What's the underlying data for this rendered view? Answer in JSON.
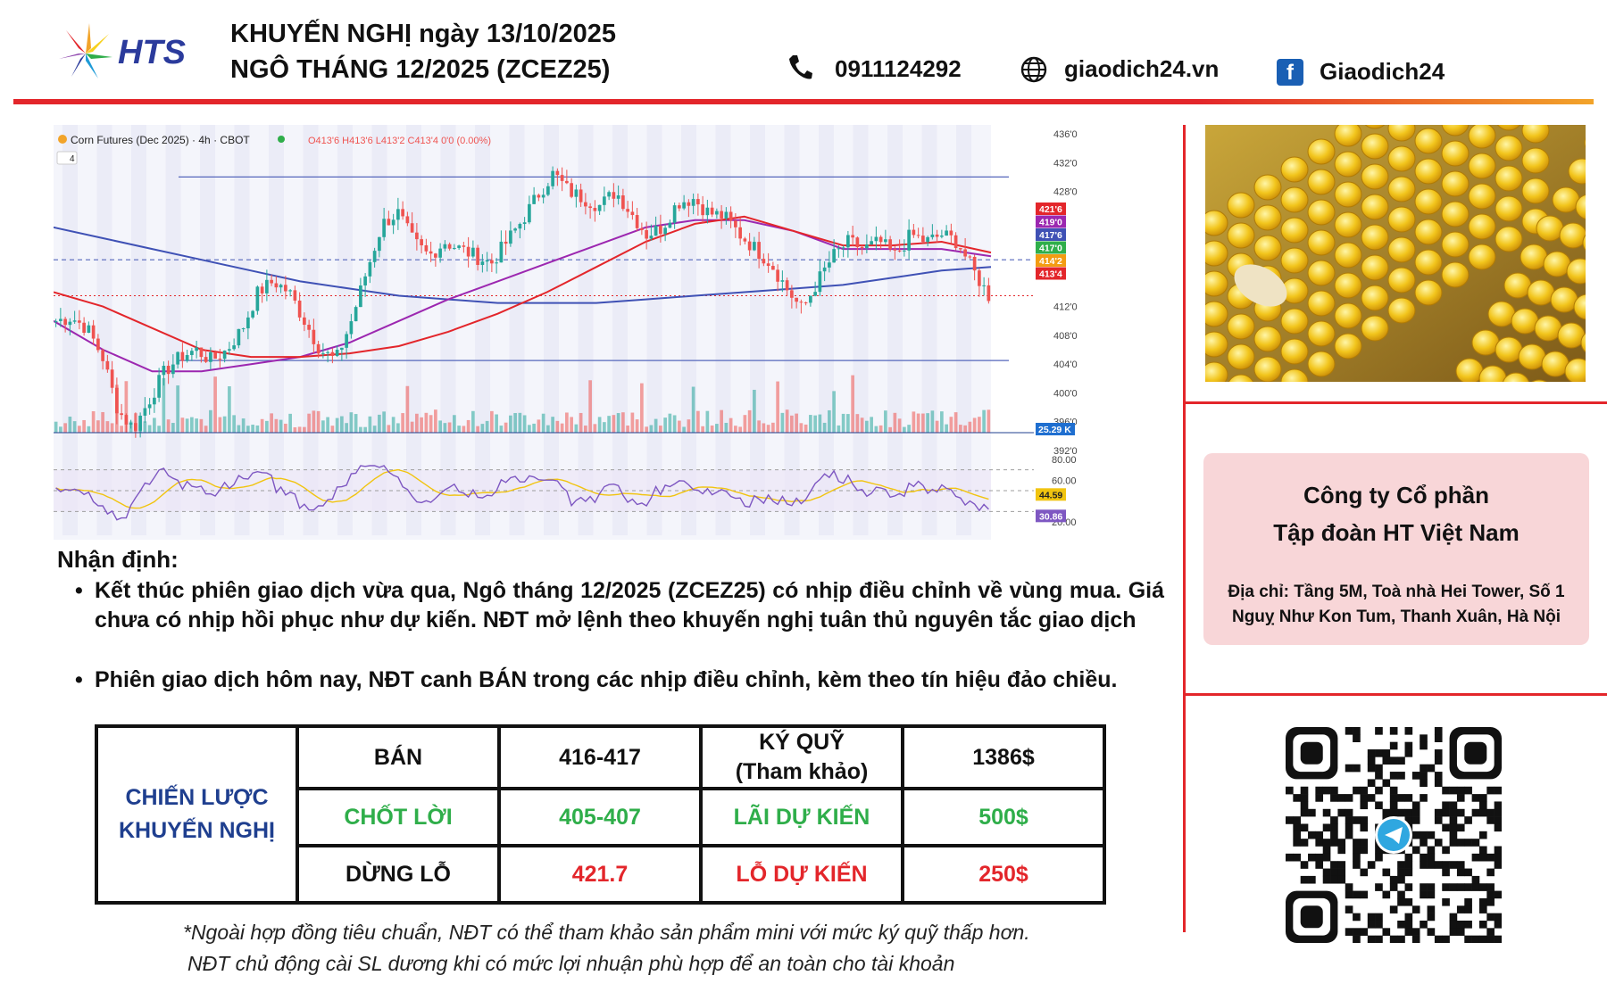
{
  "header": {
    "logo_text": "HTS",
    "title_line1": "KHUYẾN NGHỊ ngày 13/10/2025",
    "title_line2": "NGÔ THÁNG 12/2025 (ZCEZ25)",
    "phone": "0911124292",
    "website": "giaodich24.vn",
    "facebook": "Giaodich24"
  },
  "chart": {
    "legend_symbol": "Corn Futures (Dec 2025) · 4h · CBOT",
    "legend_ohlc": "O413'6 H413'6 L413'2 C413'4 0'0 (0.00%)",
    "collapse_label": "4",
    "price_ticks": [
      "436'0",
      "432'0",
      "428'0",
      "412'0",
      "408'0",
      "404'0",
      "400'0",
      "396'0",
      "392'0"
    ],
    "price_badges": [
      {
        "text": "421'6",
        "color": "#e3262b"
      },
      {
        "text": "419'0",
        "color": "#9c27b0"
      },
      {
        "text": "417'6",
        "color": "#3f51b5"
      },
      {
        "text": "417'0",
        "color": "#2fae4a"
      },
      {
        "text": "414'2",
        "color": "#f39c12"
      },
      {
        "text": "413'4",
        "color": "#e3262b"
      }
    ],
    "volume_badge": "25.29 K",
    "osc_ticks": [
      "80.00",
      "60.00",
      "20.00"
    ],
    "osc_badges": [
      {
        "text": "44.59",
        "color": "#f1c40f"
      },
      {
        "text": "30.86",
        "color": "#7e57c2"
      }
    ]
  },
  "chart_data": {
    "type": "candlestick",
    "title": "Corn Futures (Dec 2025) · 4h · CBOT",
    "ylim": [
      392,
      436
    ],
    "horizontal_levels": [
      430,
      418.5,
      404.5
    ],
    "close_path": [
      410,
      410.5,
      409,
      405,
      397.5,
      395,
      399,
      403,
      405,
      406,
      404.5,
      406,
      409,
      414,
      415.5,
      414,
      410,
      406,
      404.5,
      410,
      417,
      423.5,
      425,
      421,
      419,
      421,
      420,
      419,
      418,
      421,
      424,
      427.5,
      430.5,
      428,
      427,
      426,
      428,
      425,
      422,
      423,
      426.5,
      427,
      425,
      424.5,
      422,
      420,
      418,
      414.5,
      411.5,
      415.5,
      419,
      421,
      420,
      421,
      419,
      422,
      421,
      422,
      421,
      417,
      413.5
    ],
    "ma_series": [
      {
        "color": "#3f51b5",
        "values": [
          423,
          421.5,
          420,
          418.5,
          417,
          415.5,
          414.5,
          413.5,
          413,
          412.5,
          412.5,
          412.5,
          413,
          413.5,
          414,
          414.5,
          415,
          416,
          417,
          417.5
        ]
      },
      {
        "color": "#9c27b0",
        "values": [
          410,
          406,
          403,
          403,
          404,
          405,
          407,
          410,
          413,
          415.5,
          418,
          420.5,
          423,
          424,
          424,
          422.5,
          420,
          420,
          420,
          419
        ]
      },
      {
        "color": "#e3262b",
        "values": [
          414,
          412,
          409,
          406,
          405,
          405,
          405.5,
          406.5,
          408.5,
          411,
          414,
          417.5,
          421,
          423.5,
          424.5,
          422.5,
          420.5,
          420.5,
          421,
          419.5
        ]
      }
    ],
    "volume_last": "25.29 K",
    "oscillator": {
      "ylim": [
        20,
        80
      ],
      "last_values": [
        44.59,
        30.86
      ]
    }
  },
  "analysis": {
    "heading": "Nhận định:",
    "bullets": [
      "Kết thúc phiên giao dịch vừa qua, Ngô tháng 12/2025 (ZCEZ25) có nhịp điều chỉnh về vùng mua. Giá chưa có nhịp hồi phục như dự kiến. NĐT mở lệnh theo khuyến nghị tuân thủ nguyên tắc giao dịch",
      "Phiên giao dịch hôm nay, NĐT canh BÁN trong các nhịp điều chỉnh, kèm theo tín hiệu đảo chiều."
    ],
    "bullet_symbol": "•"
  },
  "strategy": {
    "label_line1": "CHIẾN LƯỢC",
    "label_line2": "KHUYẾN NGHỊ",
    "rows": [
      {
        "action": "BÁN",
        "range": "416-417",
        "metric_line1": "KÝ QUỸ",
        "metric_line2": "(Tham khảo)",
        "amount": "1386$"
      },
      {
        "action": "CHỐT LỜI",
        "range": "405-407",
        "metric_line1": "LÃI DỰ KIẾN",
        "metric_line2": "",
        "amount": "500$"
      },
      {
        "action": "DỪNG LỖ",
        "range": "421.7",
        "metric_line1": "LỖ DỰ KIẾN",
        "metric_line2": "",
        "amount": "250$"
      }
    ]
  },
  "notes": {
    "line1": "*Ngoài hợp đồng tiêu chuẩn, NĐT có thể tham khảo sản phẩm mini với mức ký quỹ thấp hơn.",
    "line2": "NĐT chủ động cài SL dương khi có mức lợi nhuận phù hợp để an toàn cho tài khoản"
  },
  "company": {
    "name_line1": "Công ty Cổ phần",
    "name_line2": "Tập đoàn HT Việt Nam",
    "address": "Địa chỉ: Tầng 5M, Toà nhà Hei Tower, Số 1 Nguỵ Như Kon Tum, Thanh Xuân, Hà Nội"
  },
  "icons": {
    "phone": "phone-icon",
    "website": "globe-icon",
    "facebook": "facebook-icon",
    "qr": "qr-code-icon",
    "telegram": "telegram-icon"
  }
}
